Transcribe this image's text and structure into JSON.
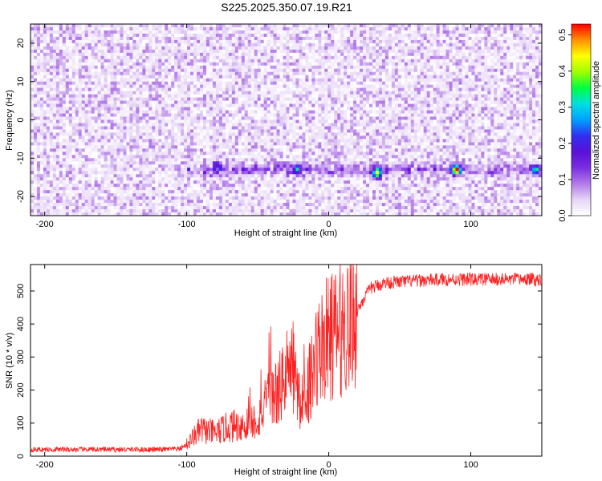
{
  "title": "S225.2025.350.07.19.R21",
  "chart_data": [
    {
      "type": "heatmap",
      "title": "S225.2025.350.07.19.R21",
      "xlabel": "Height of straight line (km)",
      "ylabel": "Frequency (Hz)",
      "colorbar_label": "Normalized spectral amplitude",
      "xlim": [
        -210,
        150
      ],
      "ylim": [
        -25,
        25
      ],
      "x_ticks": [
        -200,
        -100,
        0,
        100
      ],
      "x_tick_labels": [
        "-200",
        "-100",
        "0",
        "100"
      ],
      "y_ticks": [
        20,
        10,
        0,
        -10,
        -20
      ],
      "y_tick_labels": [
        "20",
        "10",
        "0",
        "-10",
        "-20"
      ],
      "colorbar_range": [
        0,
        0.53
      ],
      "colorbar_ticks": [
        0.0,
        0.1,
        0.2,
        0.3,
        0.4,
        0.5
      ],
      "colorbar_tick_labels": [
        "0.0",
        "0.1",
        "0.2",
        "0.3",
        "0.4",
        "0.5"
      ],
      "colormap": [
        "#ffffff",
        "#e6d5f7",
        "#b27ae8",
        "#7a2ee0",
        "#5a10d8",
        "#3030f0",
        "#00a0ff",
        "#00e0e0",
        "#00ff40",
        "#a0ff00",
        "#ffff00",
        "#ff9000",
        "#ff0000"
      ],
      "background_level": 0.02,
      "signal_band_frequency_hz": -13,
      "signal_band_extent_km": [
        -100,
        150
      ],
      "peaks": [
        {
          "x": -78,
          "y": -12,
          "value": 0.16
        },
        {
          "x": -22,
          "y": -13,
          "value": 0.2
        },
        {
          "x": 34,
          "y": -14,
          "value": 0.4
        },
        {
          "x": 90,
          "y": -13,
          "value": 0.45
        },
        {
          "x": 146,
          "y": -13,
          "value": 0.2
        }
      ]
    },
    {
      "type": "line",
      "xlabel": "Height of straight line (km)",
      "ylabel": "SNR (10 * v/v)",
      "xlim": [
        -210,
        150
      ],
      "ylim": [
        0,
        580
      ],
      "x_ticks": [
        -200,
        -100,
        0,
        100
      ],
      "x_tick_labels": [
        "-200",
        "-100",
        "0",
        "100"
      ],
      "y_ticks": [
        0,
        100,
        200,
        300,
        400,
        500
      ],
      "y_tick_labels": [
        "0",
        "100",
        "200",
        "300",
        "400",
        "500"
      ],
      "line_color": "#ff2020",
      "series": [
        {
          "x": [
            -210,
            -180,
            -150,
            -120,
            -105,
            -100,
            -95,
            -90,
            -80,
            -70,
            -60,
            -50,
            -45,
            -40,
            -35,
            -30,
            -25,
            -20,
            -15,
            -10,
            -5,
            0,
            5,
            10,
            15,
            20,
            25,
            30,
            40,
            60,
            80,
            100,
            120,
            150
          ],
          "values": [
            20,
            20,
            20,
            20,
            22,
            35,
            60,
            80,
            70,
            90,
            95,
            110,
            150,
            180,
            200,
            250,
            260,
            150,
            200,
            300,
            330,
            360,
            370,
            390,
            410,
            440,
            480,
            510,
            525,
            530,
            535,
            535,
            535,
            535
          ]
        }
      ]
    }
  ]
}
